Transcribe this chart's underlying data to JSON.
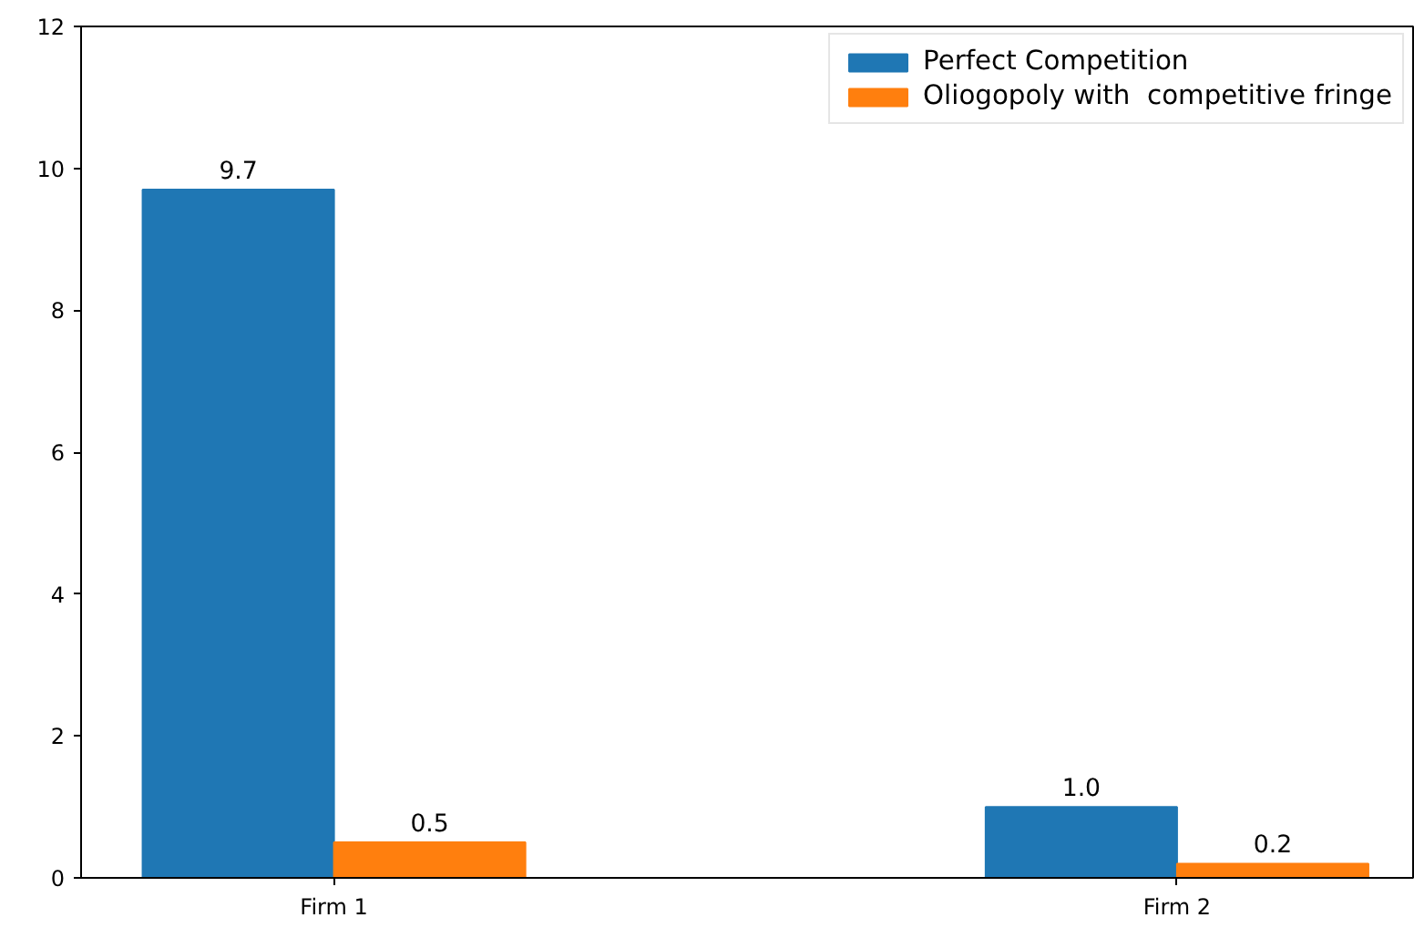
{
  "chart_data": {
    "type": "bar",
    "categories": [
      "Firm 1",
      "Firm 2"
    ],
    "series": [
      {
        "name": "Perfect Competition",
        "color": "#1f77b4",
        "values": [
          9.7,
          1.0
        ],
        "value_labels": [
          "9.7",
          "1.0"
        ]
      },
      {
        "name": "Oliogopoly with  competitive fringe",
        "color": "#ff7f0e",
        "values": [
          0.5,
          0.2
        ],
        "value_labels": [
          "0.5",
          "0.2"
        ]
      }
    ],
    "ylim": [
      0,
      12
    ],
    "yticks": [
      0,
      2,
      4,
      6,
      8,
      10,
      12
    ],
    "legend": "top right",
    "grid": false
  }
}
